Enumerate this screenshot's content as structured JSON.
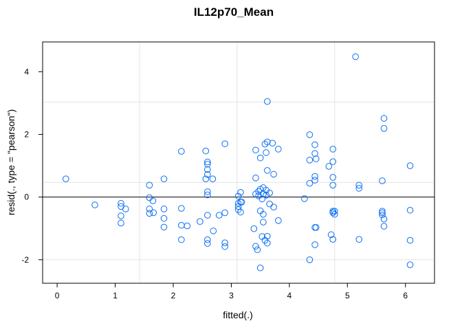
{
  "chart_data": {
    "type": "scatter",
    "title": "IL12p70_Mean",
    "xlabel": "fitted(.)",
    "ylabel": "resid(., type = \"pearson\")",
    "xlim": [
      -0.25,
      6.5
    ],
    "ylim": [
      -2.75,
      4.95
    ],
    "x_ticks": [
      0,
      1,
      2,
      3,
      4,
      5,
      6
    ],
    "y_ticks": [
      -2,
      0,
      2,
      4
    ],
    "x_grid": [
      1.42,
      3.1,
      4.78
    ],
    "y_grid": [
      -2,
      0.47,
      3.03
    ],
    "reference_line_y": 0,
    "point_color": "#0a6ef5",
    "points": [
      [
        0.15,
        0.58
      ],
      [
        0.65,
        -0.25
      ],
      [
        1.1,
        -0.2
      ],
      [
        1.1,
        -0.3
      ],
      [
        1.1,
        -0.6
      ],
      [
        1.1,
        -0.83
      ],
      [
        1.18,
        -0.38
      ],
      [
        1.59,
        0.38
      ],
      [
        1.59,
        -0.02
      ],
      [
        1.59,
        -0.38
      ],
      [
        1.59,
        -0.52
      ],
      [
        1.65,
        -0.12
      ],
      [
        1.66,
        -0.5
      ],
      [
        1.84,
        0.58
      ],
      [
        1.84,
        -0.38
      ],
      [
        1.84,
        -0.68
      ],
      [
        1.84,
        -0.96
      ],
      [
        2.14,
        1.46
      ],
      [
        2.14,
        -0.36
      ],
      [
        2.14,
        -0.9
      ],
      [
        2.14,
        -1.36
      ],
      [
        2.24,
        -0.92
      ],
      [
        2.46,
        -0.78
      ],
      [
        2.56,
        1.47
      ],
      [
        2.56,
        0.58
      ],
      [
        2.59,
        1.12
      ],
      [
        2.59,
        1.05
      ],
      [
        2.59,
        0.88
      ],
      [
        2.59,
        0.72
      ],
      [
        2.59,
        0.17
      ],
      [
        2.59,
        0.07
      ],
      [
        2.59,
        -0.58
      ],
      [
        2.59,
        -1.36
      ],
      [
        2.59,
        -1.48
      ],
      [
        2.68,
        0.58
      ],
      [
        2.69,
        -1.08
      ],
      [
        2.79,
        -0.58
      ],
      [
        2.89,
        1.7
      ],
      [
        2.89,
        -0.5
      ],
      [
        2.89,
        -1.46
      ],
      [
        2.89,
        -1.58
      ],
      [
        3.12,
        0.03
      ],
      [
        3.12,
        -0.2
      ],
      [
        3.12,
        -0.3
      ],
      [
        3.12,
        -0.4
      ],
      [
        3.16,
        0.15
      ],
      [
        3.16,
        -0.16
      ],
      [
        3.16,
        -0.48
      ],
      [
        3.18,
        -0.16
      ],
      [
        3.39,
        -1.01
      ],
      [
        3.42,
        1.5
      ],
      [
        3.42,
        0.61
      ],
      [
        3.42,
        0.1
      ],
      [
        3.42,
        -1.57
      ],
      [
        3.45,
        -1.68
      ],
      [
        3.47,
        0.18
      ],
      [
        3.47,
        0.04
      ],
      [
        3.5,
        1.25
      ],
      [
        3.5,
        0.25
      ],
      [
        3.5,
        -0.44
      ],
      [
        3.5,
        -2.26
      ],
      [
        3.53,
        -0.06
      ],
      [
        3.53,
        -1.26
      ],
      [
        3.55,
        0.3
      ],
      [
        3.55,
        0.1
      ],
      [
        3.55,
        -0.55
      ],
      [
        3.55,
        -0.8
      ],
      [
        3.58,
        1.69
      ],
      [
        3.58,
        -1.38
      ],
      [
        3.6,
        1.42
      ],
      [
        3.6,
        0.22
      ],
      [
        3.6,
        0.06
      ],
      [
        3.62,
        3.05
      ],
      [
        3.62,
        1.76
      ],
      [
        3.62,
        0.85
      ],
      [
        3.62,
        -1.25
      ],
      [
        3.62,
        -1.47
      ],
      [
        3.66,
        0.13
      ],
      [
        3.66,
        -0.22
      ],
      [
        3.71,
        1.72
      ],
      [
        3.73,
        0.73
      ],
      [
        3.73,
        -0.32
      ],
      [
        3.81,
        1.53
      ],
      [
        3.81,
        -0.75
      ],
      [
        4.26,
        -0.05
      ],
      [
        4.35,
        1.99
      ],
      [
        4.35,
        1.18
      ],
      [
        4.35,
        0.44
      ],
      [
        4.35,
        -2.0
      ],
      [
        4.44,
        1.67
      ],
      [
        4.44,
        1.39
      ],
      [
        4.44,
        0.66
      ],
      [
        4.44,
        0.54
      ],
      [
        4.44,
        -0.97
      ],
      [
        4.44,
        -1.52
      ],
      [
        4.46,
        1.22
      ],
      [
        4.46,
        -0.97
      ],
      [
        4.68,
        0.98
      ],
      [
        4.72,
        -1.2
      ],
      [
        4.75,
        1.53
      ],
      [
        4.75,
        1.13
      ],
      [
        4.75,
        0.63
      ],
      [
        4.75,
        0.38
      ],
      [
        4.75,
        -0.45
      ],
      [
        4.75,
        -0.5
      ],
      [
        4.75,
        -1.35
      ],
      [
        4.78,
        -0.45
      ],
      [
        4.78,
        -0.55
      ],
      [
        5.14,
        4.48
      ],
      [
        5.2,
        0.38
      ],
      [
        5.2,
        0.28
      ],
      [
        5.2,
        -1.35
      ],
      [
        5.6,
        0.52
      ],
      [
        5.6,
        -0.45
      ],
      [
        5.6,
        -0.5
      ],
      [
        5.6,
        -0.57
      ],
      [
        5.63,
        2.51
      ],
      [
        5.63,
        2.19
      ],
      [
        5.63,
        -0.7
      ],
      [
        5.63,
        -0.93
      ],
      [
        6.08,
        1.0
      ],
      [
        6.08,
        -0.42
      ],
      [
        6.08,
        -1.38
      ],
      [
        6.08,
        -2.16
      ]
    ]
  }
}
